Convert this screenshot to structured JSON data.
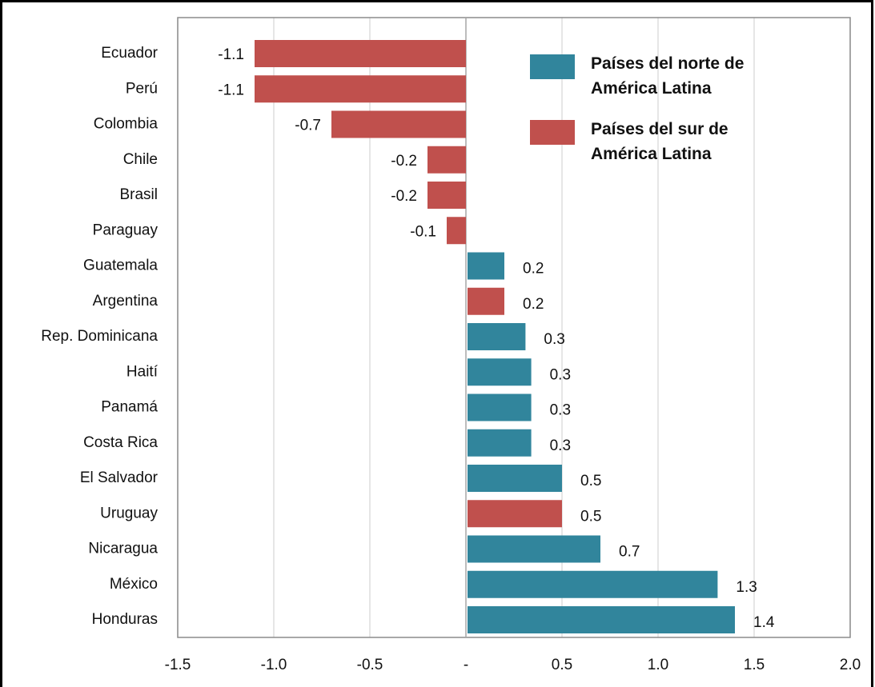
{
  "chart_data": {
    "type": "bar",
    "orientation": "horizontal",
    "categories": [
      "Ecuador",
      "Perú",
      "Colombia",
      "Chile",
      "Brasil",
      "Paraguay",
      "Guatemala",
      "Argentina",
      "Rep. Dominicana",
      "Haití",
      "Panamá",
      "Costa Rica",
      "El Salvador",
      "Uruguay",
      "Nicaragua",
      "México",
      "Honduras"
    ],
    "series": [
      {
        "name": "Países del norte de América Latina",
        "color": "#31859c",
        "values": [
          null,
          null,
          null,
          null,
          null,
          null,
          0.2,
          null,
          0.31,
          0.34,
          0.34,
          0.34,
          0.5,
          null,
          0.7,
          1.31,
          1.4
        ],
        "value_labels": [
          null,
          null,
          null,
          null,
          null,
          null,
          "0.2",
          null,
          "0.3",
          "0.3",
          "0.3",
          "0.3",
          "0.5",
          null,
          "0.7",
          "1.3",
          "1.4"
        ]
      },
      {
        "name": "Países del sur de América Latina",
        "color": "#c0504d",
        "values": [
          -1.1,
          -1.1,
          -0.7,
          -0.2,
          -0.2,
          -0.1,
          null,
          0.2,
          null,
          null,
          null,
          null,
          null,
          0.5,
          null,
          null,
          null
        ],
        "value_labels": [
          "-1.1",
          "-1.1",
          "-0.7",
          "-0.2",
          "-0.2",
          "-0.1",
          null,
          "0.2",
          null,
          null,
          null,
          null,
          null,
          "0.5",
          null,
          null,
          null
        ]
      }
    ],
    "xlim": [
      -1.5,
      2.0
    ],
    "xticks": [
      -1.5,
      {
        "value": -1,
        "label": "-1.0"
      },
      -0.5,
      {
        "value": 0,
        "label": "-"
      },
      0.5,
      {
        "value": 1,
        "label": "1.0"
      },
      1.5,
      {
        "value": 2,
        "label": "2.0"
      }
    ],
    "grid": true,
    "legend": "upper right"
  }
}
